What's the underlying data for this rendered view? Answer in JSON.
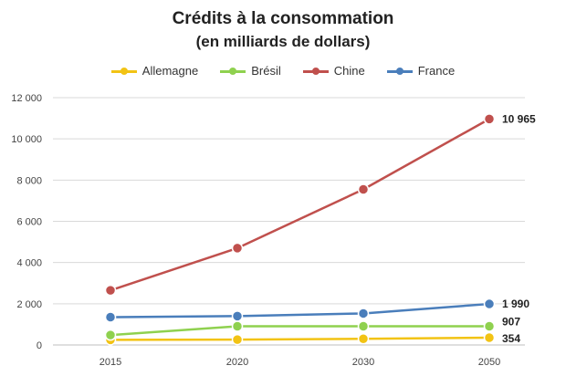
{
  "chart_data": {
    "type": "line",
    "title": "Crédits à la consommation",
    "subtitle": "(en milliards de dollars)",
    "categories": [
      "2015",
      "2020",
      "2030",
      "2050"
    ],
    "ylim": [
      0,
      12000
    ],
    "yticks": [
      0,
      2000,
      4000,
      6000,
      8000,
      10000,
      12000
    ],
    "ytick_labels": [
      "0",
      "2 000",
      "4 000",
      "6 000",
      "8 000",
      "10 000",
      "12 000"
    ],
    "grid": true,
    "legend_position": "top",
    "series": [
      {
        "name": "Allemagne",
        "color": "#f2c314",
        "values": [
          250,
          260,
          300,
          354
        ],
        "last_label": "354"
      },
      {
        "name": "Brésil",
        "color": "#8fd14f",
        "values": [
          480,
          907,
          907,
          907
        ],
        "last_label": "907"
      },
      {
        "name": "Chine",
        "color": "#c0504d",
        "values": [
          2650,
          4700,
          7550,
          10965
        ],
        "last_label": "10 965"
      },
      {
        "name": "France",
        "color": "#4a7ebb",
        "values": [
          1350,
          1400,
          1530,
          1990
        ],
        "last_label": "1 990"
      }
    ]
  }
}
